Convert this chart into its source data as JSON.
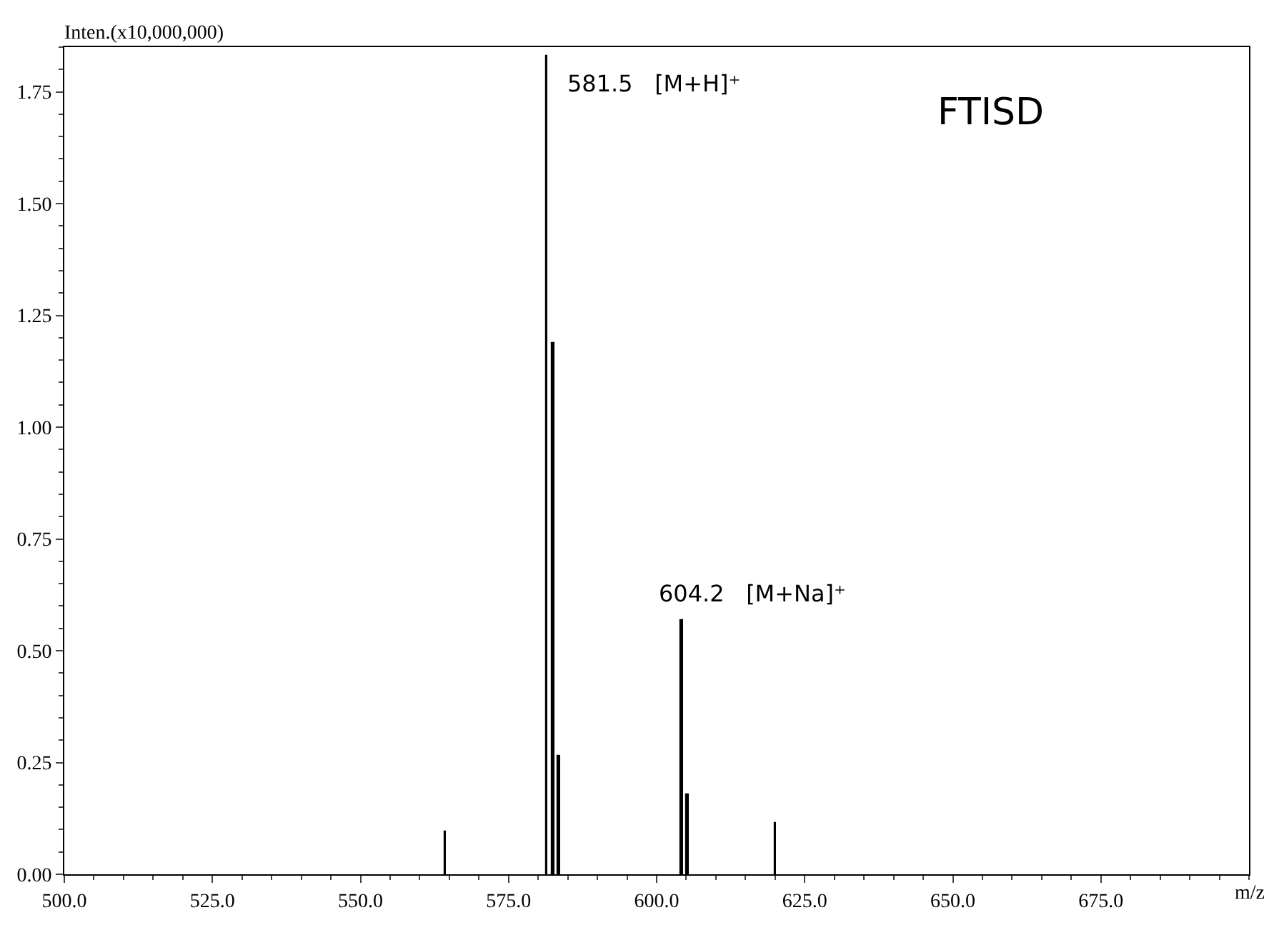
{
  "chart_data": {
    "type": "bar",
    "xlabel": "m/z",
    "ylabel": "Inten.(x10,000,000)",
    "x": [
      564.3,
      581.5,
      582.5,
      583.5,
      604.2,
      605.2,
      620.1
    ],
    "values": [
      0.096,
      1.83,
      1.19,
      0.266,
      0.569,
      0.18,
      0.114
    ],
    "color": "#000000",
    "xlim": [
      500,
      700
    ],
    "xticks": [
      {
        "value": 500,
        "label": "500.0"
      },
      {
        "value": 525,
        "label": "525.0"
      },
      {
        "value": 550,
        "label": "550.0"
      },
      {
        "value": 575,
        "label": "575.0"
      },
      {
        "value": 600,
        "label": "600.0"
      },
      {
        "value": 625,
        "label": "625.0"
      },
      {
        "value": 650,
        "label": "650.0"
      },
      {
        "value": 675,
        "label": "675.0"
      }
    ],
    "ylim": [
      0,
      1.85
    ],
    "yticks": [
      {
        "value": 0,
        "label": "0.00"
      },
      {
        "value": 0.25,
        "label": "0.25"
      },
      {
        "value": 0.5,
        "label": "0.50"
      },
      {
        "value": 0.75,
        "label": "0.75"
      },
      {
        "value": 1,
        "label": "1.00"
      },
      {
        "value": 1.25,
        "label": "1.25"
      },
      {
        "value": 1.5,
        "label": "1.50"
      },
      {
        "value": 1.75,
        "label": "1.75"
      }
    ],
    "annotations": [
      {
        "text": "581.5   [M+H]⁺",
        "x": 581.5,
        "y": 1.83
      },
      {
        "text": "604.2   [M+Na]⁺",
        "x": 604.2,
        "y": 0.569
      },
      "FTISD"
    ]
  }
}
